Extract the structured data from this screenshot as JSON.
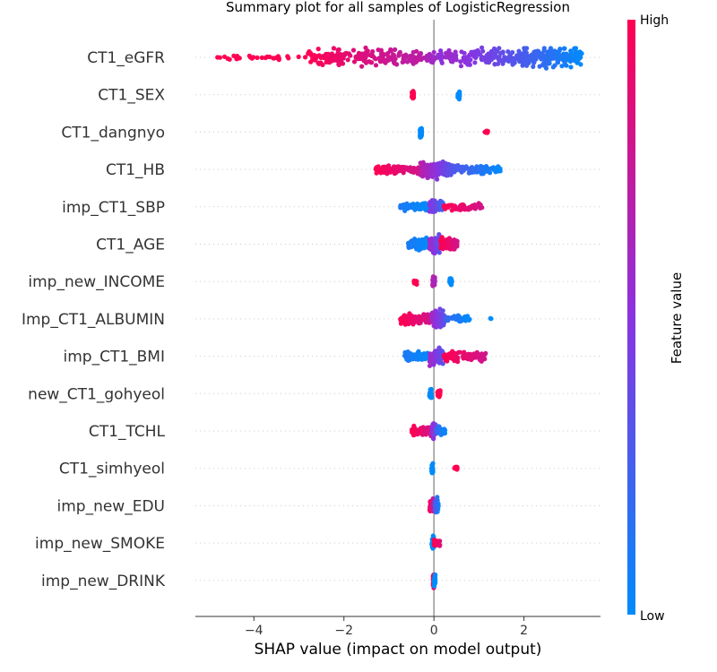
{
  "chart_data": {
    "type": "scatter",
    "subtype": "shap-beeswarm",
    "title": "Summary plot for all samples of LogisticRegression",
    "xlabel": "SHAP value (impact on model output)",
    "ylabel": "",
    "xlim": [
      -5.3,
      3.7
    ],
    "xticks": [
      {
        "value": -4,
        "label": "−4"
      },
      {
        "value": -2,
        "label": "−2"
      },
      {
        "value": 0,
        "label": "0"
      },
      {
        "value": 2,
        "label": "2"
      }
    ],
    "colorbar": {
      "title": "Feature value",
      "high_label": "High",
      "low_label": "Low",
      "low_color": "#008bfb",
      "high_color": "#ff0052"
    },
    "features": [
      {
        "name": "CT1_eGFR",
        "spread": [
          -5.0,
          3.3
        ],
        "clusters": [
          {
            "min": -5.0,
            "max": -2.8,
            "n": 30,
            "w": 0.25,
            "c": [
              1.0,
              1.0
            ]
          },
          {
            "min": -2.8,
            "max": -0.4,
            "n": 170,
            "w": 0.9,
            "c": [
              1.0,
              0.7
            ]
          },
          {
            "min": -0.4,
            "max": 0.2,
            "n": 50,
            "w": 0.7,
            "c": [
              0.75,
              0.5
            ]
          },
          {
            "min": 0.2,
            "max": 1.8,
            "n": 120,
            "w": 0.9,
            "c": [
              0.6,
              0.3
            ]
          },
          {
            "min": 1.8,
            "max": 3.3,
            "n": 190,
            "w": 1.0,
            "c": [
              0.3,
              0.0
            ]
          }
        ]
      },
      {
        "name": "CT1_SEX",
        "spread": [
          -0.5,
          0.57
        ],
        "clusters": [
          {
            "min": -0.49,
            "max": -0.45,
            "n": 30,
            "w": 0.5,
            "c": [
              1.0,
              1.0
            ],
            "vertical": true
          },
          {
            "min": 0.53,
            "max": 0.57,
            "n": 30,
            "w": 0.5,
            "c": [
              0.0,
              0.0
            ],
            "vertical": true
          }
        ]
      },
      {
        "name": "CT1_dangnyo",
        "spread": [
          -0.3,
          1.2
        ],
        "clusters": [
          {
            "min": -0.31,
            "max": -0.27,
            "n": 40,
            "w": 0.6,
            "c": [
              0.0,
              0.0
            ],
            "vertical": true
          },
          {
            "min": 1.13,
            "max": 1.2,
            "n": 14,
            "w": 0.25,
            "c": [
              1.0,
              1.0
            ],
            "vertical": true
          }
        ]
      },
      {
        "name": "CT1_HB",
        "spread": [
          -1.3,
          1.5
        ],
        "clusters": [
          {
            "min": -1.3,
            "max": -0.3,
            "n": 90,
            "w": 0.5,
            "c": [
              1.0,
              0.8
            ]
          },
          {
            "min": -0.3,
            "max": 0.4,
            "n": 160,
            "w": 0.9,
            "c": [
              0.7,
              0.3
            ]
          },
          {
            "min": 0.4,
            "max": 1.5,
            "n": 80,
            "w": 0.45,
            "c": [
              0.3,
              0.0
            ]
          }
        ]
      },
      {
        "name": "imp_CT1_SBP",
        "spread": [
          -0.75,
          1.1
        ],
        "clusters": [
          {
            "min": -0.75,
            "max": -0.1,
            "n": 60,
            "w": 0.45,
            "c": [
              0.1,
              0.0
            ]
          },
          {
            "min": -0.1,
            "max": 0.2,
            "n": 60,
            "w": 0.9,
            "c": [
              0.5,
              0.2
            ]
          },
          {
            "min": 0.2,
            "max": 1.1,
            "n": 60,
            "w": 0.4,
            "c": [
              1.0,
              0.8
            ]
          }
        ]
      },
      {
        "name": "CT1_AGE",
        "spread": [
          -0.6,
          0.55
        ],
        "clusters": [
          {
            "min": -0.58,
            "max": -0.1,
            "n": 90,
            "w": 0.65,
            "c": [
              0.1,
              0.0
            ]
          },
          {
            "min": -0.1,
            "max": 0.15,
            "n": 80,
            "w": 0.9,
            "c": [
              0.6,
              0.3
            ]
          },
          {
            "min": 0.15,
            "max": 0.52,
            "n": 90,
            "w": 0.75,
            "c": [
              1.0,
              0.8
            ]
          }
        ]
      },
      {
        "name": "imp_new_INCOME",
        "spread": [
          -0.45,
          0.4
        ],
        "clusters": [
          {
            "min": -0.45,
            "max": -0.38,
            "n": 16,
            "w": 0.3,
            "c": [
              1.0,
              1.0
            ],
            "vertical": true
          },
          {
            "min": -0.03,
            "max": 0.02,
            "n": 30,
            "w": 0.6,
            "c": [
              0.7,
              0.6
            ],
            "vertical": true
          },
          {
            "min": 0.35,
            "max": 0.4,
            "n": 18,
            "w": 0.35,
            "c": [
              0.0,
              0.0
            ],
            "vertical": true
          }
        ]
      },
      {
        "name": "Imp_CT1_ALBUMIN",
        "spread": [
          -0.75,
          1.3
        ],
        "clusters": [
          {
            "min": -0.75,
            "max": -0.05,
            "n": 110,
            "w": 0.6,
            "c": [
              1.0,
              0.8
            ]
          },
          {
            "min": -0.05,
            "max": 0.25,
            "n": 90,
            "w": 0.9,
            "c": [
              0.6,
              0.3
            ]
          },
          {
            "min": 0.25,
            "max": 0.8,
            "n": 40,
            "w": 0.4,
            "c": [
              0.2,
              0.0
            ]
          },
          {
            "min": 1.25,
            "max": 1.3,
            "n": 2,
            "w": 0.1,
            "c": [
              0.0,
              0.0
            ]
          }
        ]
      },
      {
        "name": "imp_CT1_BMI",
        "spread": [
          -0.65,
          1.15
        ],
        "clusters": [
          {
            "min": -0.65,
            "max": -0.1,
            "n": 60,
            "w": 0.5,
            "c": [
              0.1,
              0.0
            ]
          },
          {
            "min": -0.1,
            "max": 0.2,
            "n": 90,
            "w": 0.95,
            "c": [
              0.6,
              0.3
            ]
          },
          {
            "min": 0.2,
            "max": 1.15,
            "n": 80,
            "w": 0.5,
            "c": [
              1.0,
              0.8
            ]
          }
        ]
      },
      {
        "name": "new_CT1_gohyeol",
        "spread": [
          -0.1,
          0.15
        ],
        "clusters": [
          {
            "min": -0.1,
            "max": -0.05,
            "n": 36,
            "w": 0.6,
            "c": [
              0.0,
              0.0
            ],
            "vertical": true
          },
          {
            "min": 0.08,
            "max": 0.14,
            "n": 30,
            "w": 0.55,
            "c": [
              1.0,
              1.0
            ],
            "vertical": true
          }
        ]
      },
      {
        "name": "CT1_TCHL",
        "spread": [
          -0.5,
          0.25
        ],
        "clusters": [
          {
            "min": -0.5,
            "max": -0.05,
            "n": 60,
            "w": 0.5,
            "c": [
              1.0,
              0.8
            ]
          },
          {
            "min": -0.05,
            "max": 0.05,
            "n": 40,
            "w": 0.85,
            "c": [
              0.6,
              0.3
            ]
          },
          {
            "min": 0.05,
            "max": 0.25,
            "n": 30,
            "w": 0.5,
            "c": [
              0.2,
              0.0
            ]
          }
        ]
      },
      {
        "name": "CT1_simhyeol",
        "spread": [
          -0.05,
          0.5
        ],
        "clusters": [
          {
            "min": -0.05,
            "max": -0.02,
            "n": 36,
            "w": 0.75,
            "c": [
              0.0,
              0.0
            ],
            "vertical": true
          },
          {
            "min": 0.45,
            "max": 0.53,
            "n": 10,
            "w": 0.25,
            "c": [
              1.0,
              1.0
            ]
          }
        ]
      },
      {
        "name": "imp_new_EDU",
        "spread": [
          -0.1,
          0.1
        ],
        "clusters": [
          {
            "min": -0.1,
            "max": -0.02,
            "n": 40,
            "w": 0.8,
            "c": [
              1.0,
              0.7
            ]
          },
          {
            "min": 0.02,
            "max": 0.1,
            "n": 40,
            "w": 0.8,
            "c": [
              0.3,
              0.0
            ]
          }
        ]
      },
      {
        "name": "imp_new_SMOKE",
        "spread": [
          -0.05,
          0.15
        ],
        "clusters": [
          {
            "min": -0.05,
            "max": 0.0,
            "n": 40,
            "w": 0.8,
            "c": [
              0.0,
              0.0
            ],
            "vertical": true
          },
          {
            "min": 0.0,
            "max": 0.15,
            "n": 20,
            "w": 0.4,
            "c": [
              1.0,
              0.85
            ]
          }
        ]
      },
      {
        "name": "imp_new_DRINK",
        "spread": [
          -0.02,
          0.03
        ],
        "clusters": [
          {
            "min": -0.02,
            "max": 0.0,
            "n": 30,
            "w": 0.8,
            "c": [
              1.0,
              0.9
            ],
            "vertical": true
          },
          {
            "min": 0.0,
            "max": 0.03,
            "n": 30,
            "w": 0.8,
            "c": [
              0.0,
              0.0
            ],
            "vertical": true
          }
        ]
      }
    ]
  }
}
